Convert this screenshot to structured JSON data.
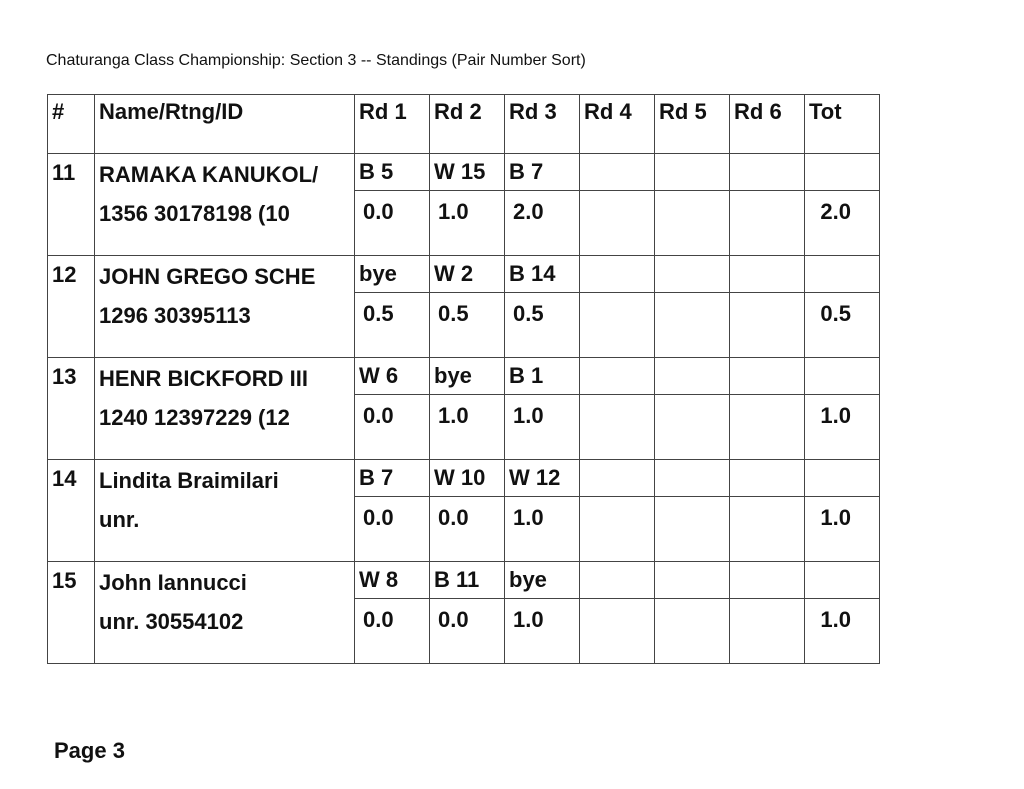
{
  "title": "Chaturanga Class Championship: Section 3 -- Standings (Pair Number Sort)",
  "headers": [
    "#",
    "Name/Rtng/ID",
    "Rd 1",
    "Rd 2",
    "Rd 3",
    "Rd 4",
    "Rd 5",
    "Rd 6",
    "Tot"
  ],
  "players": [
    {
      "num": "11",
      "name": "RAMAKA KANUKOL/",
      "info": "1356   30178198   (10",
      "rounds": [
        "B   5",
        "W 15",
        "B   7",
        "",
        "",
        ""
      ],
      "scores": [
        "0.0",
        "1.0",
        "2.0",
        "",
        "",
        ""
      ],
      "total": "2.0"
    },
    {
      "num": "12",
      "name": "JOHN GREGO SCHE",
      "info": "1296   30395113",
      "rounds": [
        "bye",
        "W   2",
        "B 14",
        "",
        "",
        ""
      ],
      "scores": [
        "0.5",
        "0.5",
        "0.5",
        "",
        "",
        ""
      ],
      "total": "0.5"
    },
    {
      "num": "13",
      "name": "HENR BICKFORD III",
      "info": "1240   12397229   (12",
      "rounds": [
        "W   6",
        "bye",
        "B   1",
        "",
        "",
        ""
      ],
      "scores": [
        "0.0",
        "1.0",
        "1.0",
        "",
        "",
        ""
      ],
      "total": "1.0"
    },
    {
      "num": "14",
      "name": "Lindita Braimilari",
      "info": "unr.",
      "rounds": [
        "B   7",
        "W 10",
        "W 12",
        "",
        "",
        ""
      ],
      "scores": [
        "0.0",
        "0.0",
        "1.0",
        "",
        "",
        ""
      ],
      "total": "1.0"
    },
    {
      "num": "15",
      "name": "John Iannucci",
      "info": "unr.   30554102",
      "rounds": [
        "W   8",
        "B 11",
        "bye",
        "",
        "",
        ""
      ],
      "scores": [
        "0.0",
        "0.0",
        "1.0",
        "",
        "",
        ""
      ],
      "total": "1.0"
    }
  ],
  "footer": "Page 3"
}
